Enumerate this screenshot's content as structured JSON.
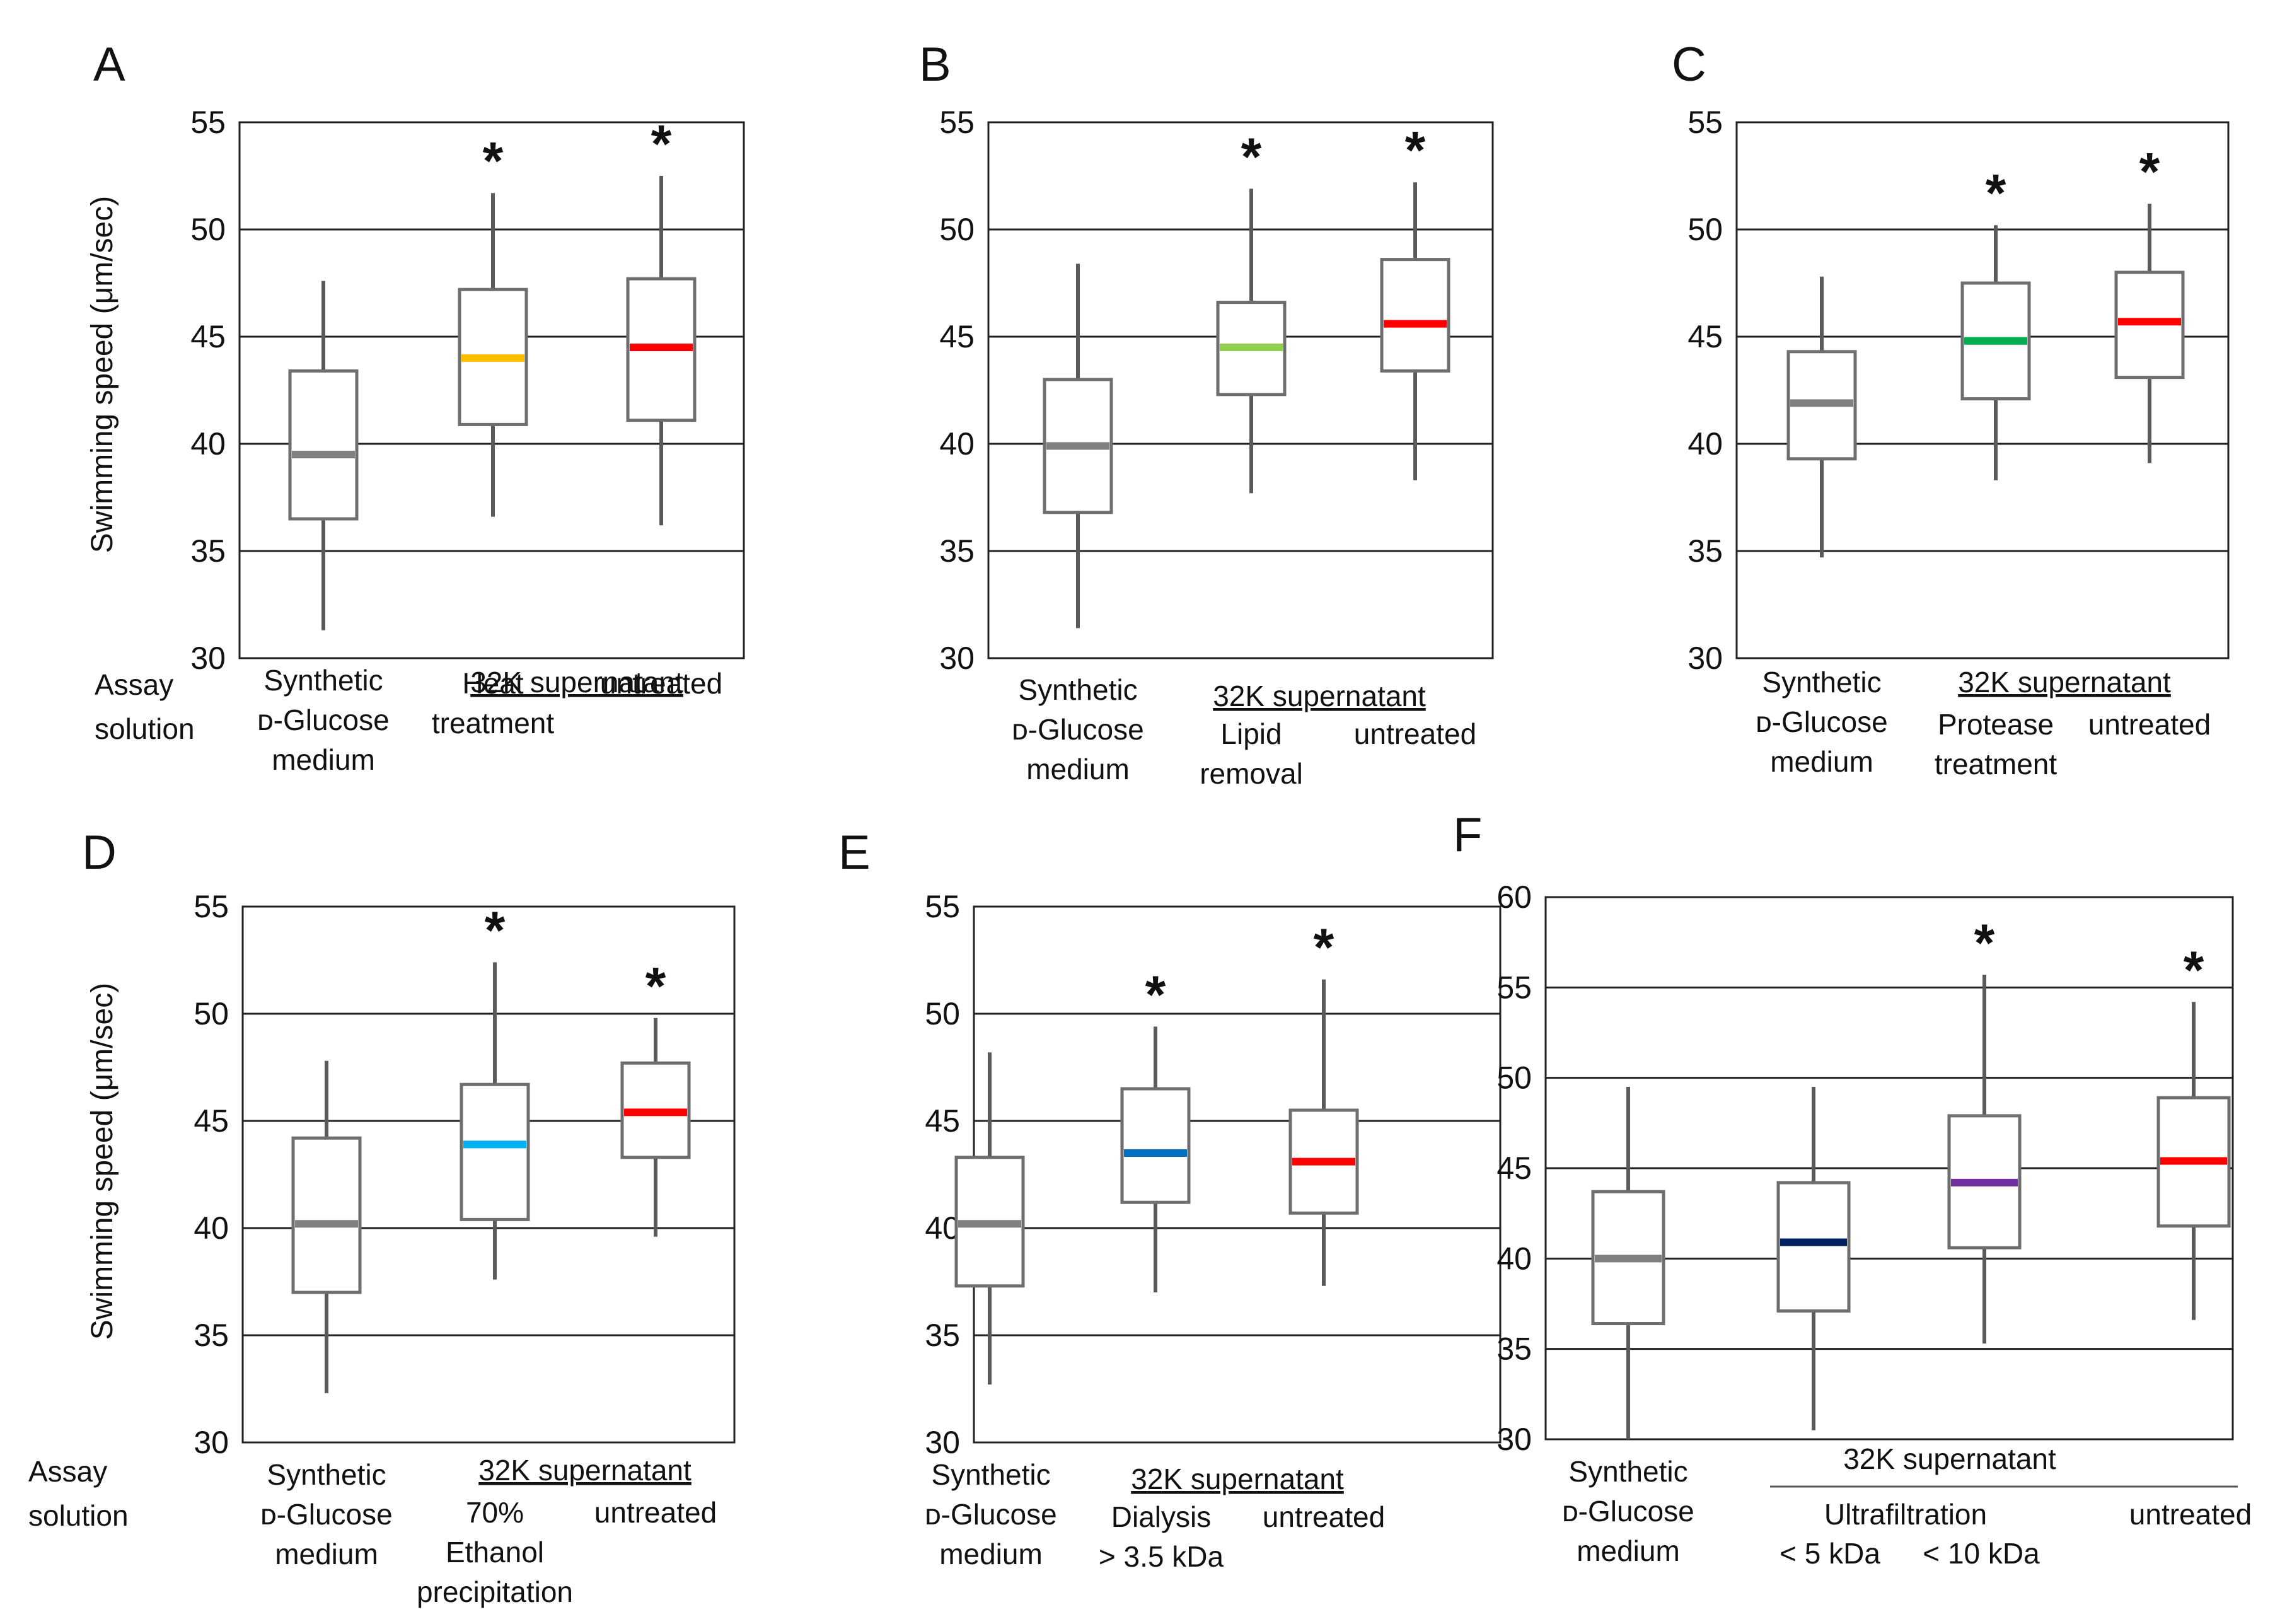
{
  "figure": {
    "ylabel": "Swimming speed (μm/sec)",
    "assay_label": [
      "Assay",
      "solution"
    ],
    "star_symbol": "*"
  },
  "chart_data": [
    {
      "panel": "A",
      "type": "box",
      "ylabel": "Swimming speed (μm/sec)",
      "ylim": [
        30,
        55
      ],
      "yticks": [
        30,
        35,
        40,
        45,
        50,
        55
      ],
      "grid": true,
      "group_label": "32K supernatant",
      "series": [
        {
          "name": "Synthetic D-Glucose medium",
          "label_lines": [
            "Synthetic",
            "ᴅ-Glucose",
            "medium"
          ],
          "whisker_low": 31.3,
          "q1": 36.5,
          "median": 39.5,
          "q3": 43.4,
          "whisker_high": 47.6,
          "color": "#808080",
          "significant": false
        },
        {
          "name": "Heat treatment",
          "label_lines": [
            "Heat",
            "treatment"
          ],
          "whisker_low": 36.6,
          "q1": 40.9,
          "median": 44.0,
          "q3": 47.2,
          "whisker_high": 51.7,
          "color": "#FFC000",
          "significant": true
        },
        {
          "name": "untreated",
          "label_lines": [
            "untreated"
          ],
          "whisker_low": 36.2,
          "q1": 41.1,
          "median": 44.5,
          "q3": 47.7,
          "whisker_high": 52.5,
          "color": "#FF0000",
          "significant": true
        }
      ]
    },
    {
      "panel": "B",
      "type": "box",
      "ylim": [
        30,
        55
      ],
      "yticks": [
        30,
        35,
        40,
        45,
        50,
        55
      ],
      "grid": true,
      "group_label": "32K supernatant",
      "series": [
        {
          "name": "Synthetic D-Glucose medium",
          "label_lines": [
            "Synthetic",
            "ᴅ-Glucose",
            "medium"
          ],
          "whisker_low": 31.4,
          "q1": 36.8,
          "median": 39.9,
          "q3": 43.0,
          "whisker_high": 48.4,
          "color": "#808080",
          "significant": false
        },
        {
          "name": "Lipid removal",
          "label_lines": [
            "Lipid",
            "removal"
          ],
          "whisker_low": 37.7,
          "q1": 42.3,
          "median": 44.5,
          "q3": 46.6,
          "whisker_high": 51.9,
          "color": "#92D050",
          "significant": true
        },
        {
          "name": "untreated",
          "label_lines": [
            "untreated"
          ],
          "whisker_low": 38.3,
          "q1": 43.4,
          "median": 45.6,
          "q3": 48.6,
          "whisker_high": 52.2,
          "color": "#FF0000",
          "significant": true
        }
      ]
    },
    {
      "panel": "C",
      "type": "box",
      "ylim": [
        30,
        55
      ],
      "yticks": [
        30,
        35,
        40,
        45,
        50,
        55
      ],
      "grid": true,
      "group_label": "32K supernatant",
      "series": [
        {
          "name": "Synthetic D-Glucose medium",
          "label_lines": [
            "Synthetic",
            "ᴅ-Glucose",
            "medium"
          ],
          "whisker_low": 34.7,
          "q1": 39.3,
          "median": 41.9,
          "q3": 44.3,
          "whisker_high": 47.8,
          "color": "#808080",
          "significant": false
        },
        {
          "name": "Protease treatment",
          "label_lines": [
            "Protease",
            "treatment"
          ],
          "whisker_low": 38.3,
          "q1": 42.1,
          "median": 44.8,
          "q3": 47.5,
          "whisker_high": 50.2,
          "color": "#00B050",
          "significant": true
        },
        {
          "name": "untreated",
          "label_lines": [
            "untreated"
          ],
          "whisker_low": 39.1,
          "q1": 43.1,
          "median": 45.7,
          "q3": 48.0,
          "whisker_high": 51.2,
          "color": "#FF0000",
          "significant": true
        }
      ]
    },
    {
      "panel": "D",
      "type": "box",
      "ylabel": "Swimming speed (μm/sec)",
      "ylim": [
        30,
        55
      ],
      "yticks": [
        30,
        35,
        40,
        45,
        50,
        55
      ],
      "grid": true,
      "group_label": "32K supernatant",
      "series": [
        {
          "name": "Synthetic D-Glucose medium",
          "label_lines": [
            "Synthetic",
            "ᴅ-Glucose",
            "medium"
          ],
          "whisker_low": 32.3,
          "q1": 37.0,
          "median": 40.2,
          "q3": 44.2,
          "whisker_high": 47.8,
          "color": "#808080",
          "significant": false
        },
        {
          "name": "70% Ethanol precipitation",
          "label_lines": [
            "70%",
            "Ethanol",
            "precipitation"
          ],
          "whisker_low": 37.6,
          "q1": 40.4,
          "median": 43.9,
          "q3": 46.7,
          "whisker_high": 52.4,
          "color": "#00B0F0",
          "significant": true
        },
        {
          "name": "untreated",
          "label_lines": [
            "untreated"
          ],
          "whisker_low": 39.6,
          "q1": 43.3,
          "median": 45.4,
          "q3": 47.7,
          "whisker_high": 49.8,
          "color": "#FF0000",
          "significant": true
        }
      ]
    },
    {
      "panel": "E",
      "type": "box",
      "ylim": [
        30,
        55
      ],
      "yticks": [
        30,
        35,
        40,
        45,
        50,
        55
      ],
      "grid": true,
      "group_label": "32K supernatant",
      "series": [
        {
          "name": "Synthetic D-Glucose medium",
          "label_lines": [
            "Synthetic",
            "ᴅ-Glucose",
            "medium"
          ],
          "whisker_low": 32.7,
          "q1": 37.3,
          "median": 40.2,
          "q3": 43.3,
          "whisker_high": 48.2,
          "color": "#808080",
          "significant": false
        },
        {
          "name": "Dialysis > 3.5 kDa",
          "label_lines": [
            "Dialysis",
            "> 3.5 kDa"
          ],
          "whisker_low": 37.0,
          "q1": 41.2,
          "median": 43.5,
          "q3": 46.5,
          "whisker_high": 49.4,
          "color": "#0070C0",
          "significant": true
        },
        {
          "name": "untreated",
          "label_lines": [
            "untreated"
          ],
          "whisker_low": 37.3,
          "q1": 40.7,
          "median": 43.1,
          "q3": 45.5,
          "whisker_high": 51.6,
          "color": "#FF0000",
          "significant": true
        }
      ]
    },
    {
      "panel": "F",
      "type": "box",
      "ylim": [
        30,
        60
      ],
      "yticks": [
        30,
        35,
        40,
        45,
        50,
        55,
        60
      ],
      "grid": true,
      "group_label": "32K supernatant",
      "subgroup_label": "Ultrafiltration",
      "series": [
        {
          "name": "Synthetic D-Glucose medium",
          "label_lines": [
            "Synthetic",
            "ᴅ-Glucose",
            "medium"
          ],
          "whisker_low": 30.0,
          "q1": 36.4,
          "median": 40.0,
          "q3": 43.7,
          "whisker_high": 49.5,
          "color": "#808080",
          "significant": false
        },
        {
          "name": "< 5 kDa",
          "label_lines": [
            "< 5 kDa"
          ],
          "whisker_low": 30.5,
          "q1": 37.1,
          "median": 40.9,
          "q3": 44.2,
          "whisker_high": 49.5,
          "color": "#002060",
          "significant": false
        },
        {
          "name": "< 10 kDa",
          "label_lines": [
            "< 10 kDa"
          ],
          "whisker_low": 35.3,
          "q1": 40.6,
          "median": 44.2,
          "q3": 47.9,
          "whisker_high": 55.7,
          "color": "#7030A0",
          "significant": true
        },
        {
          "name": "untreated",
          "label_lines": [
            "untreated"
          ],
          "whisker_low": 36.6,
          "q1": 41.8,
          "median": 45.4,
          "q3": 48.9,
          "whisker_high": 54.2,
          "color": "#FF0000",
          "significant": true
        }
      ]
    }
  ]
}
